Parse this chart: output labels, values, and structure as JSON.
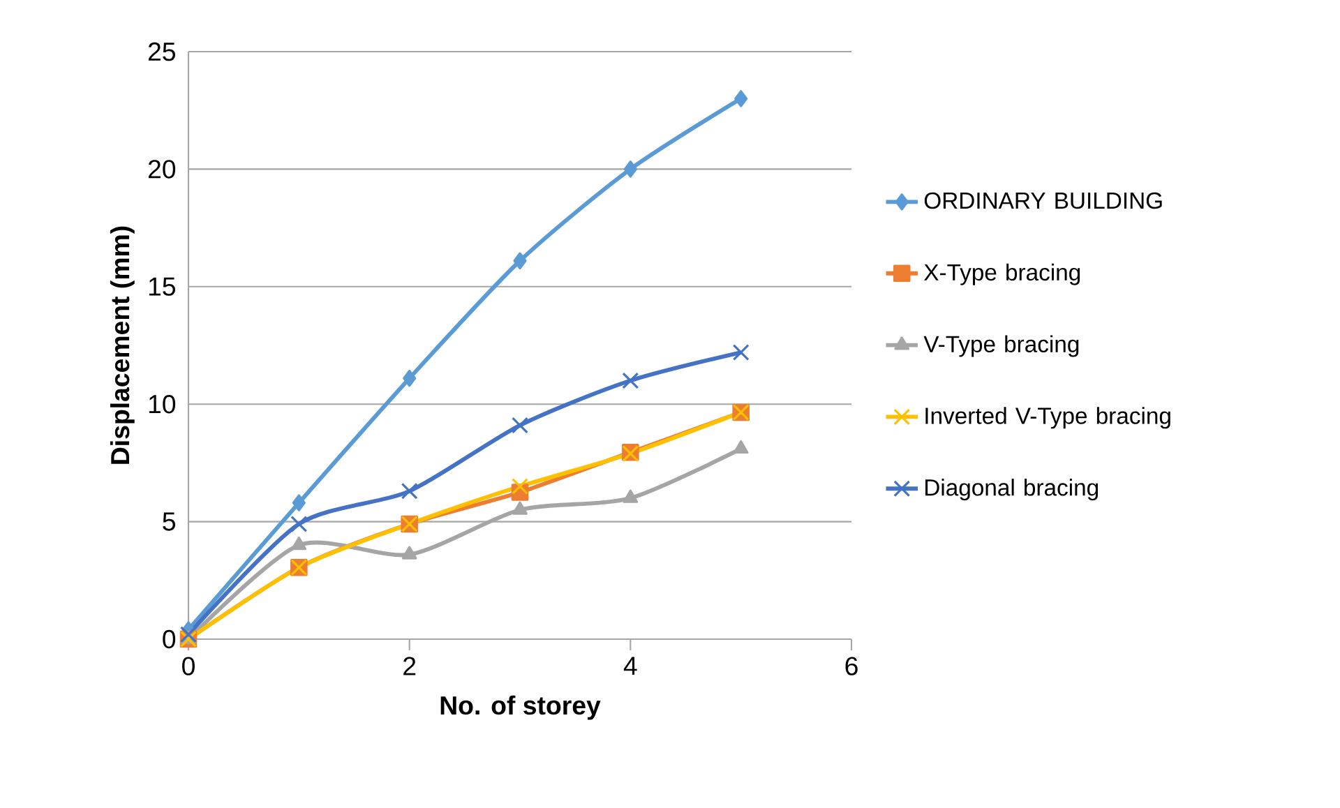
{
  "chart_data": {
    "type": "line",
    "xlabel": "No. of storey",
    "ylabel": "Displacement (mm)",
    "x": [
      0,
      1,
      2,
      3,
      4,
      5
    ],
    "xlim": [
      0,
      6
    ],
    "xticks": [
      0,
      2,
      4,
      6
    ],
    "ylim": [
      0,
      25
    ],
    "yticks": [
      0,
      5,
      10,
      15,
      20,
      25
    ],
    "grid": "y",
    "legend": "right",
    "line_style": "solid",
    "series": [
      {
        "name": "ORDINARY BUILDING",
        "color": "#5b9bd5",
        "marker": "diamond",
        "values": [
          0.4,
          5.8,
          11.1,
          16.1,
          20.0,
          23.0
        ]
      },
      {
        "name": "X-Type bracing",
        "color": "#ed7d31",
        "marker": "square",
        "values": [
          0,
          3.05,
          4.9,
          6.25,
          7.95,
          9.65
        ]
      },
      {
        "name": "V-Type bracing",
        "color": "#a5a5a5",
        "marker": "triangle",
        "values": [
          0,
          4.0,
          3.6,
          5.5,
          6.0,
          8.1
        ]
      },
      {
        "name": "Inverted V-Type bracing",
        "color": "#ffc000",
        "marker": "cross",
        "values": [
          0,
          3.05,
          4.9,
          6.5,
          7.9,
          9.65
        ]
      },
      {
        "name": "Diagonal bracing",
        "color": "#4472c4",
        "marker": "cross",
        "values": [
          0.2,
          4.9,
          6.3,
          9.1,
          11.0,
          12.2
        ]
      }
    ]
  }
}
